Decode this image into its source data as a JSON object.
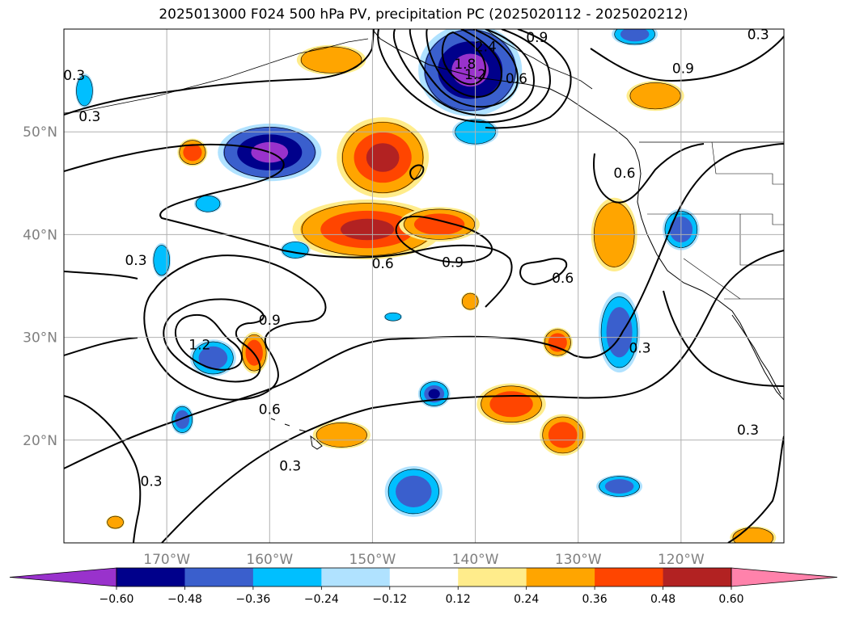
{
  "title": "2025013000 F024 500 hPa PV, precipitation PC (2025020112 - 2025020212)",
  "map": {
    "lon_range": [
      -180,
      -110
    ],
    "lat_range": [
      10,
      60
    ],
    "lat_ticks": [
      {
        "label": "50°N",
        "lat": 50
      },
      {
        "label": "40°N",
        "lat": 40
      },
      {
        "label": "30°N",
        "lat": 30
      },
      {
        "label": "20°N",
        "lat": 20
      }
    ],
    "lon_ticks": [
      {
        "label": "170°W",
        "lon": -170
      },
      {
        "label": "160°W",
        "lon": -160
      },
      {
        "label": "150°W",
        "lon": -150
      },
      {
        "label": "140°W",
        "lon": -140
      },
      {
        "label": "130°W",
        "lon": -130
      },
      {
        "label": "120°W",
        "lon": -120
      }
    ],
    "pv_contour_labels": [
      {
        "text": "0.3",
        "lon": -177.5,
        "lat": 51.5
      },
      {
        "text": "0.3",
        "lon": -179,
        "lat": 55.5
      },
      {
        "text": "0.3",
        "lon": -173,
        "lat": 37.5
      },
      {
        "text": "0.3",
        "lon": -171.5,
        "lat": 16
      },
      {
        "text": "0.3",
        "lon": -158,
        "lat": 17.5
      },
      {
        "text": "0.3",
        "lon": -124,
        "lat": 29
      },
      {
        "text": "0.3",
        "lon": -113.5,
        "lat": 21
      },
      {
        "text": "0.3",
        "lon": -112.5,
        "lat": 59.5
      },
      {
        "text": "0.6",
        "lon": -160,
        "lat": 23
      },
      {
        "text": "0.6",
        "lon": -149,
        "lat": 37.2
      },
      {
        "text": "0.6",
        "lon": -131.5,
        "lat": 35.8
      },
      {
        "text": "0.6",
        "lon": -125.5,
        "lat": 46
      },
      {
        "text": "0.6",
        "lon": -136,
        "lat": 55.2
      },
      {
        "text": "0.9",
        "lon": -160,
        "lat": 31.7
      },
      {
        "text": "0.9",
        "lon": -142.2,
        "lat": 37.3
      },
      {
        "text": "0.9",
        "lon": -119.8,
        "lat": 56.2
      },
      {
        "text": "0.9",
        "lon": -134,
        "lat": 59.2
      },
      {
        "text": "1.2",
        "lon": -166.8,
        "lat": 29.3
      },
      {
        "text": "1.2",
        "lon": -140,
        "lat": 55.6
      },
      {
        "text": "1.8",
        "lon": -141,
        "lat": 56.6
      },
      {
        "text": "2.4",
        "lon": -139,
        "lat": 58.3
      }
    ]
  },
  "colorbar": {
    "tick_labels": [
      "−0.60",
      "−0.48",
      "−0.36",
      "−0.24",
      "−0.12",
      "0.12",
      "0.24",
      "0.36",
      "0.48",
      "0.60"
    ],
    "colors": [
      "#9932cc",
      "#00008b",
      "#3a5fcd",
      "#00bfff",
      "#b0e2ff",
      "#ffffff",
      "#ffec8b",
      "#ffa500",
      "#ff4500",
      "#b22222",
      "#ff82ab"
    ]
  },
  "precip_anomalies": [
    {
      "lon": -160,
      "lat": 48,
      "rx": 4.5,
      "ry": 2.5,
      "levels": [
        -0.36,
        -0.48,
        -0.6
      ]
    },
    {
      "lon": -140.5,
      "lat": 56,
      "rx": 4.5,
      "ry": 4,
      "levels": [
        -0.36,
        -0.48,
        -0.6
      ]
    },
    {
      "lon": -149,
      "lat": 47.5,
      "rx": 4,
      "ry": 3.5,
      "levels": [
        0.24,
        0.36,
        0.48
      ]
    },
    {
      "lon": -150.5,
      "lat": 40.5,
      "rx": 6.5,
      "ry": 2.6,
      "levels": [
        0.24,
        0.36,
        0.48
      ]
    },
    {
      "lon": -143.5,
      "lat": 41,
      "rx": 3.5,
      "ry": 1.5,
      "levels": [
        0.24,
        0.36
      ]
    },
    {
      "lon": -165.5,
      "lat": 28,
      "rx": 2,
      "ry": 1.6,
      "levels": [
        -0.24,
        -0.36
      ]
    },
    {
      "lon": -161.5,
      "lat": 28.5,
      "rx": 1.2,
      "ry": 1.8,
      "levels": [
        0.24,
        0.36
      ]
    },
    {
      "lon": -168.5,
      "lat": 22,
      "rx": 1,
      "ry": 1.3,
      "levels": [
        -0.24,
        -0.36
      ]
    },
    {
      "lon": -144,
      "lat": 24.5,
      "rx": 1.4,
      "ry": 1.2,
      "levels": [
        -0.24,
        -0.36,
        -0.48
      ]
    },
    {
      "lon": -146,
      "lat": 15,
      "rx": 2.5,
      "ry": 2.2,
      "levels": [
        -0.24,
        -0.36
      ]
    },
    {
      "lon": -136.5,
      "lat": 23.5,
      "rx": 3,
      "ry": 1.8,
      "levels": [
        0.24,
        0.36
      ]
    },
    {
      "lon": -132,
      "lat": 29.5,
      "rx": 1.3,
      "ry": 1.3,
      "levels": [
        0.24,
        0.36
      ]
    },
    {
      "lon": -131.5,
      "lat": 20.5,
      "rx": 2,
      "ry": 1.8,
      "levels": [
        0.24,
        0.36
      ]
    },
    {
      "lon": -126,
      "lat": 30.5,
      "rx": 1.8,
      "ry": 3.5,
      "levels": [
        -0.24,
        -0.36
      ]
    },
    {
      "lon": -126.5,
      "lat": 40,
      "rx": 2,
      "ry": 3.2,
      "levels": [
        0.24
      ]
    },
    {
      "lon": -120,
      "lat": 40.5,
      "rx": 1.6,
      "ry": 1.8,
      "levels": [
        -0.24,
        -0.36
      ]
    },
    {
      "lon": -126,
      "lat": 15.5,
      "rx": 2,
      "ry": 1,
      "levels": [
        -0.24,
        -0.36
      ]
    },
    {
      "lon": -153,
      "lat": 20.5,
      "rx": 2.5,
      "ry": 1.2,
      "levels": [
        0.24
      ]
    },
    {
      "lon": -140,
      "lat": 50,
      "rx": 2,
      "ry": 1.2,
      "levels": [
        -0.24
      ]
    },
    {
      "lon": -122.5,
      "lat": 53.5,
      "rx": 2.5,
      "ry": 1.3,
      "levels": [
        0.24
      ]
    },
    {
      "lon": -154,
      "lat": 57,
      "rx": 3,
      "ry": 1.3,
      "levels": [
        0.24
      ]
    },
    {
      "lon": -167.5,
      "lat": 48,
      "rx": 1.3,
      "ry": 1.2,
      "levels": [
        0.24,
        0.36
      ]
    },
    {
      "lon": -166,
      "lat": 43,
      "rx": 1.2,
      "ry": 0.8,
      "levels": [
        -0.24
      ]
    },
    {
      "lon": -170.5,
      "lat": 37.5,
      "rx": 0.8,
      "ry": 1.5,
      "levels": [
        -0.24
      ]
    },
    {
      "lon": -178,
      "lat": 54,
      "rx": 0.8,
      "ry": 1.5,
      "levels": [
        -0.24
      ]
    },
    {
      "lon": -157.5,
      "lat": 38.5,
      "rx": 1.3,
      "ry": 0.8,
      "levels": [
        -0.24
      ]
    },
    {
      "lon": -124.5,
      "lat": 59.5,
      "rx": 2,
      "ry": 1,
      "levels": [
        -0.24,
        -0.36
      ]
    },
    {
      "lon": -113,
      "lat": 10.5,
      "rx": 2,
      "ry": 1,
      "levels": [
        0.24
      ]
    },
    {
      "lon": -140.5,
      "lat": 33.5,
      "rx": 0.8,
      "ry": 0.8,
      "levels": [
        0.24
      ]
    },
    {
      "lon": -148,
      "lat": 32,
      "rx": 0.8,
      "ry": 0.4,
      "levels": [
        -0.24
      ]
    },
    {
      "lon": -175,
      "lat": 12,
      "rx": 0.8,
      "ry": 0.6,
      "levels": [
        0.24
      ]
    }
  ]
}
